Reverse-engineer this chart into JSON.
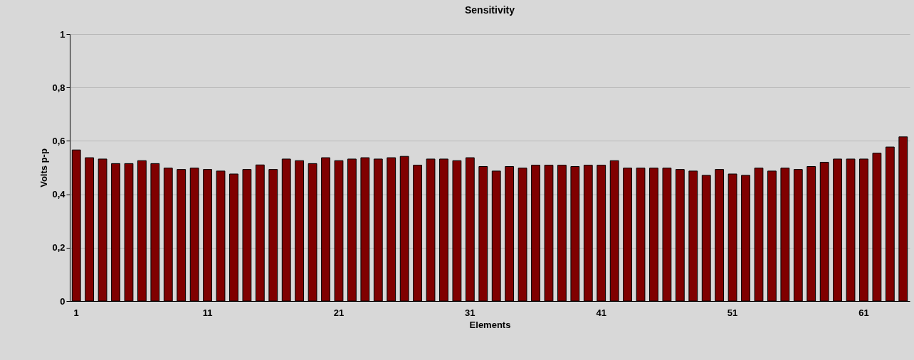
{
  "chart_data": {
    "type": "bar",
    "title": "Sensitivity",
    "xlabel": "Elements",
    "ylabel": "Volts p-p",
    "categories": [
      "1",
      null,
      null,
      null,
      null,
      null,
      null,
      null,
      null,
      null,
      "11",
      null,
      null,
      null,
      null,
      null,
      null,
      null,
      null,
      null,
      "21",
      null,
      null,
      null,
      null,
      null,
      null,
      null,
      null,
      null,
      "31",
      null,
      null,
      null,
      null,
      null,
      null,
      null,
      null,
      null,
      "41",
      null,
      null,
      null,
      null,
      null,
      null,
      null,
      null,
      null,
      "51",
      null,
      null,
      null,
      null,
      null,
      null,
      null,
      null,
      null,
      "61",
      null,
      null,
      null
    ],
    "values": [
      0.566,
      0.537,
      0.532,
      0.515,
      0.515,
      0.526,
      0.515,
      0.498,
      0.493,
      0.498,
      0.493,
      0.487,
      0.476,
      0.493,
      0.51,
      0.493,
      0.532,
      0.526,
      0.515,
      0.537,
      0.526,
      0.532,
      0.537,
      0.532,
      0.537,
      0.542,
      0.509,
      0.532,
      0.532,
      0.526,
      0.537,
      0.504,
      0.487,
      0.504,
      0.498,
      0.509,
      0.509,
      0.509,
      0.504,
      0.509,
      0.509,
      0.526,
      0.498,
      0.498,
      0.498,
      0.498,
      0.493,
      0.487,
      0.471,
      0.493,
      0.476,
      0.471,
      0.498,
      0.487,
      0.498,
      0.493,
      0.504,
      0.52,
      0.532,
      0.532,
      0.532,
      0.554,
      0.577,
      0.615
    ],
    "color": "#800000",
    "ylim": [
      0,
      1
    ],
    "yticks": [
      0,
      {
        "value": 0.2,
        "label": "0,2"
      },
      {
        "value": 0.4,
        "label": "0,4"
      },
      {
        "value": 0.6,
        "label": "0,6"
      },
      {
        "value": 0.8,
        "label": "0,8"
      },
      1
    ],
    "grid": "y"
  }
}
